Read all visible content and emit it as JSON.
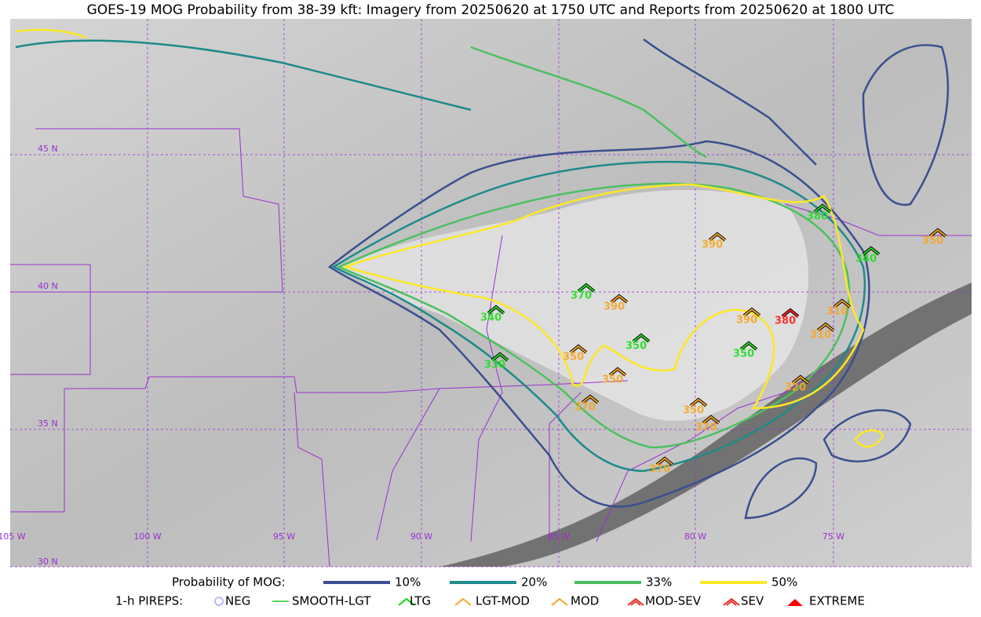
{
  "header": {
    "title": "GOES-19 MOG Probability from 38-39 kft: Imagery from 20250620 at 1750 UTC and Reports from 20250620 at 1800 UTC"
  },
  "map": {
    "latitudes": [
      "45 N",
      "40 N",
      "35 N",
      "30 N"
    ],
    "longitudes": [
      "105 W",
      "100 W",
      "95 W",
      "90 W",
      "85 W",
      "80 W",
      "75 W"
    ],
    "reports": [
      {
        "altitude": 380,
        "color": "#22dd22"
      },
      {
        "altitude": 340,
        "color": "#22dd22"
      },
      {
        "altitude": 340,
        "color": "#22dd22"
      },
      {
        "altitude": 330,
        "color": "#22dd22"
      },
      {
        "altitude": 370,
        "color": "#22dd22"
      },
      {
        "altitude": 350,
        "color": "#22dd22"
      },
      {
        "altitude": 350,
        "color": "#22dd22"
      },
      {
        "altitude": 390,
        "color": "#f5a623"
      },
      {
        "altitude": 390,
        "color": "#f5a623"
      },
      {
        "altitude": 310,
        "color": "#f5a623"
      },
      {
        "altitude": 310,
        "color": "#f5a623"
      },
      {
        "altitude": 320,
        "color": "#f5a623"
      },
      {
        "altitude": 350,
        "color": "#f5a623"
      },
      {
        "altitude": 350,
        "color": "#f5a623"
      },
      {
        "altitude": 370,
        "color": "#f5a623"
      },
      {
        "altitude": 350,
        "color": "#f5a623"
      },
      {
        "altitude": 370,
        "color": "#f5a623"
      },
      {
        "altitude": 370,
        "color": "#f5a623"
      },
      {
        "altitude": 390,
        "color": "#f5a623"
      },
      {
        "altitude": 350,
        "color": "#f5a623"
      },
      {
        "altitude": 380,
        "color": "#ff2020"
      }
    ]
  },
  "legend": {
    "probability_title": "Probability of MOG:",
    "levels": [
      {
        "label": "10%",
        "color": "#3b4f8f"
      },
      {
        "label": "20%",
        "color": "#1f8a8a"
      },
      {
        "label": "33%",
        "color": "#4cc061"
      },
      {
        "label": "50%",
        "color": "#fde725"
      }
    ],
    "pireps_title": "1-h PIREPS:",
    "pireps": [
      {
        "label": "NEG",
        "color": "#b8b8ff"
      },
      {
        "label": "SMOOTH-LGT",
        "color": "#22cc22"
      },
      {
        "label": "LTG",
        "color": "#00dd00"
      },
      {
        "label": "LGT-MOD",
        "color": "#f5a623"
      },
      {
        "label": "MOD",
        "color": "#f5a623"
      },
      {
        "label": "MOD-SEV",
        "color": "#e83030"
      },
      {
        "label": "SEV",
        "color": "#e83030"
      },
      {
        "label": "EXTREME",
        "color": "#ff0000"
      }
    ]
  }
}
